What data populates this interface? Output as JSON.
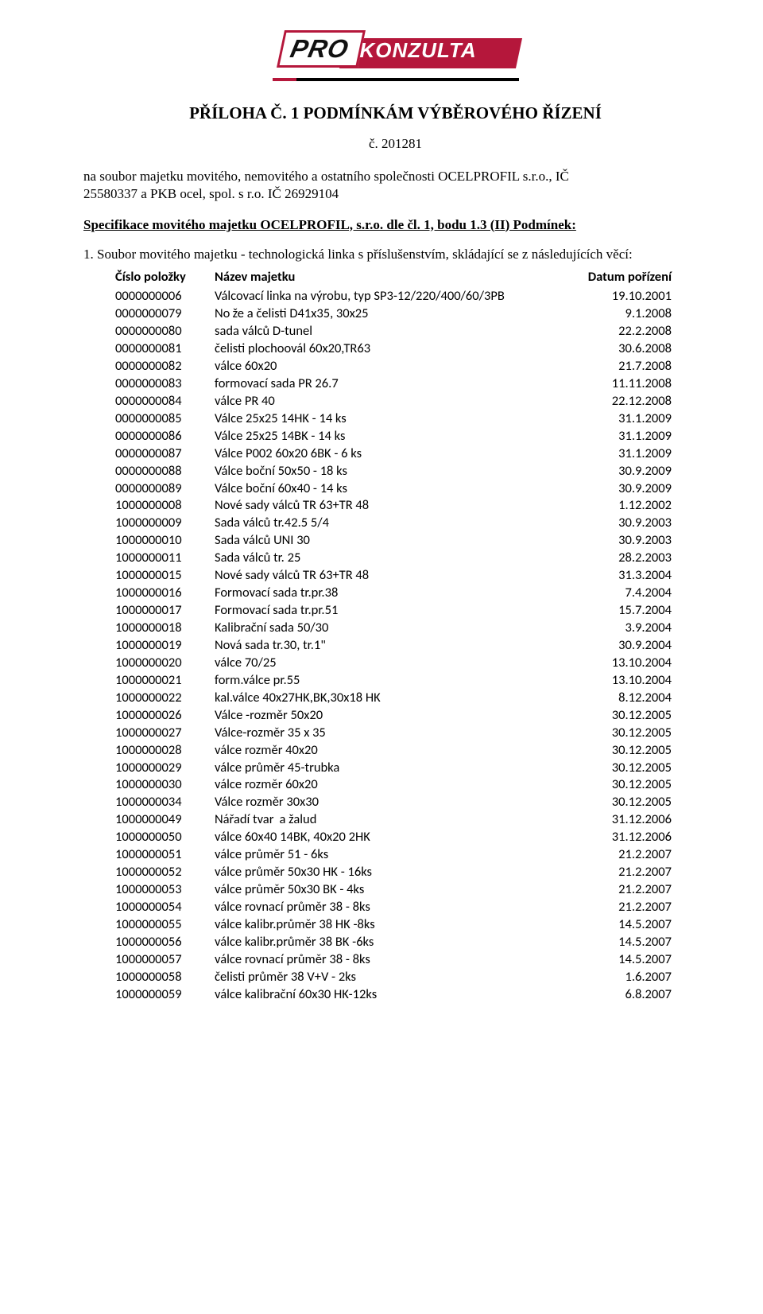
{
  "logo": {
    "left": "PRO",
    "right": "KONZULTA"
  },
  "heading": "PŘÍLOHA Č. 1 PODMÍNKÁM VÝBĚROVÉHO ŘÍZENÍ",
  "subnumber": "č. 201281",
  "intro_line1": "na soubor majetku movitého, nemovitého a ostatního společnosti OCELPROFIL s.r.o., IČ",
  "intro_line2": "25580337 a PKB ocel, spol. s r.o. IČ 26929104",
  "spec_line": "Specifikace movitého majetku OCELPROFIL, s.r.o. dle čl. 1, bodu 1.3 (II) Podmínek:",
  "note_line": "1.  Soubor movitého majetku - technologická linka s příslušenstvím, skládající se z následujících věcí:",
  "columns": {
    "c1": "Číslo položky",
    "c2": "Název majetku",
    "c3": "Datum pořízení"
  },
  "rows": [
    {
      "id": "0000000006",
      "name": "Válcovací linka na výrobu, typ SP3-12/220/400/60/3PB",
      "date": "19.10.2001"
    },
    {
      "id": "0000000079",
      "name": "No že a čelisti D41x35, 30x25",
      "date": "9.1.2008"
    },
    {
      "id": "0000000080",
      "name": "sada válců D-tunel",
      "date": "22.2.2008"
    },
    {
      "id": "0000000081",
      "name": "čelisti plochoovál 60x20,TR63",
      "date": "30.6.2008"
    },
    {
      "id": "0000000082",
      "name": "válce 60x20",
      "date": "21.7.2008"
    },
    {
      "id": "0000000083",
      "name": "formovací sada PR 26.7",
      "date": "11.11.2008"
    },
    {
      "id": "0000000084",
      "name": "válce PR 40",
      "date": "22.12.2008"
    },
    {
      "id": "0000000085",
      "name": "Válce 25x25 14HK - 14 ks",
      "date": "31.1.2009"
    },
    {
      "id": "0000000086",
      "name": "Válce 25x25 14BK - 14 ks",
      "date": "31.1.2009"
    },
    {
      "id": "0000000087",
      "name": "Válce P002 60x20 6BK - 6 ks",
      "date": "31.1.2009"
    },
    {
      "id": "0000000088",
      "name": "Válce boční 50x50 - 18 ks",
      "date": "30.9.2009"
    },
    {
      "id": "0000000089",
      "name": "Válce boční 60x40 - 14 ks",
      "date": "30.9.2009"
    },
    {
      "id": "1000000008",
      "name": "Nové sady válců TR 63+TR 48",
      "date": "1.12.2002"
    },
    {
      "id": "1000000009",
      "name": "Sada válců tr.42.5 5/4",
      "date": "30.9.2003"
    },
    {
      "id": "1000000010",
      "name": "Sada válců  UNI 30",
      "date": "30.9.2003"
    },
    {
      "id": "1000000011",
      "name": "Sada válců tr. 25",
      "date": "28.2.2003"
    },
    {
      "id": "1000000015",
      "name": "Nové sady válců TR 63+TR 48",
      "date": "31.3.2004"
    },
    {
      "id": "1000000016",
      "name": "Formovací sada tr.pr.38",
      "date": "7.4.2004"
    },
    {
      "id": "1000000017",
      "name": "Formovací sada tr.pr.51",
      "date": "15.7.2004"
    },
    {
      "id": "1000000018",
      "name": "Kalibrační sada 50/30",
      "date": "3.9.2004"
    },
    {
      "id": "1000000019",
      "name": "Nová sada tr.30, tr.1\"",
      "date": "30.9.2004"
    },
    {
      "id": "1000000020",
      "name": "válce 70/25",
      "date": "13.10.2004"
    },
    {
      "id": "1000000021",
      "name": "form.válce pr.55",
      "date": "13.10.2004"
    },
    {
      "id": "1000000022",
      "name": "kal.válce 40x27HK,BK,30x18 HK",
      "date": "8.12.2004"
    },
    {
      "id": "1000000026",
      "name": "Válce -rozměr 50x20",
      "date": "30.12.2005"
    },
    {
      "id": "1000000027",
      "name": "Válce-rozměr 35 x 35",
      "date": "30.12.2005"
    },
    {
      "id": "1000000028",
      "name": "válce rozměr 40x20",
      "date": "30.12.2005"
    },
    {
      "id": "1000000029",
      "name": "válce průměr 45-trubka",
      "date": "30.12.2005"
    },
    {
      "id": "1000000030",
      "name": "válce rozměr 60x20",
      "date": "30.12.2005"
    },
    {
      "id": "1000000034",
      "name": "Válce rozměr 30x30",
      "date": "30.12.2005"
    },
    {
      "id": "1000000049",
      "name": "Nářadí tvar  a žalud",
      "date": "31.12.2006"
    },
    {
      "id": "1000000050",
      "name": "válce 60x40 14BK, 40x20 2HK",
      "date": "31.12.2006"
    },
    {
      "id": "1000000051",
      "name": "válce průměr 51 - 6ks",
      "date": "21.2.2007"
    },
    {
      "id": "1000000052",
      "name": "válce průměr 50x30 HK - 16ks",
      "date": "21.2.2007"
    },
    {
      "id": "1000000053",
      "name": "válce průměr 50x30 BK - 4ks",
      "date": "21.2.2007"
    },
    {
      "id": "1000000054",
      "name": "válce rovnací průměr 38 - 8ks",
      "date": "21.2.2007"
    },
    {
      "id": "1000000055",
      "name": "válce kalibr.průměr 38 HK -8ks",
      "date": "14.5.2007"
    },
    {
      "id": "1000000056",
      "name": "válce kalibr.průměr 38 BK -6ks",
      "date": "14.5.2007"
    },
    {
      "id": "1000000057",
      "name": "válce rovnací průměr 38 - 8ks",
      "date": "14.5.2007"
    },
    {
      "id": "1000000058",
      "name": "čelisti průměr 38 V+V - 2ks",
      "date": "1.6.2007"
    },
    {
      "id": "1000000059",
      "name": "válce kalibrační 60x30 HK-12ks",
      "date": "6.8.2007"
    }
  ]
}
